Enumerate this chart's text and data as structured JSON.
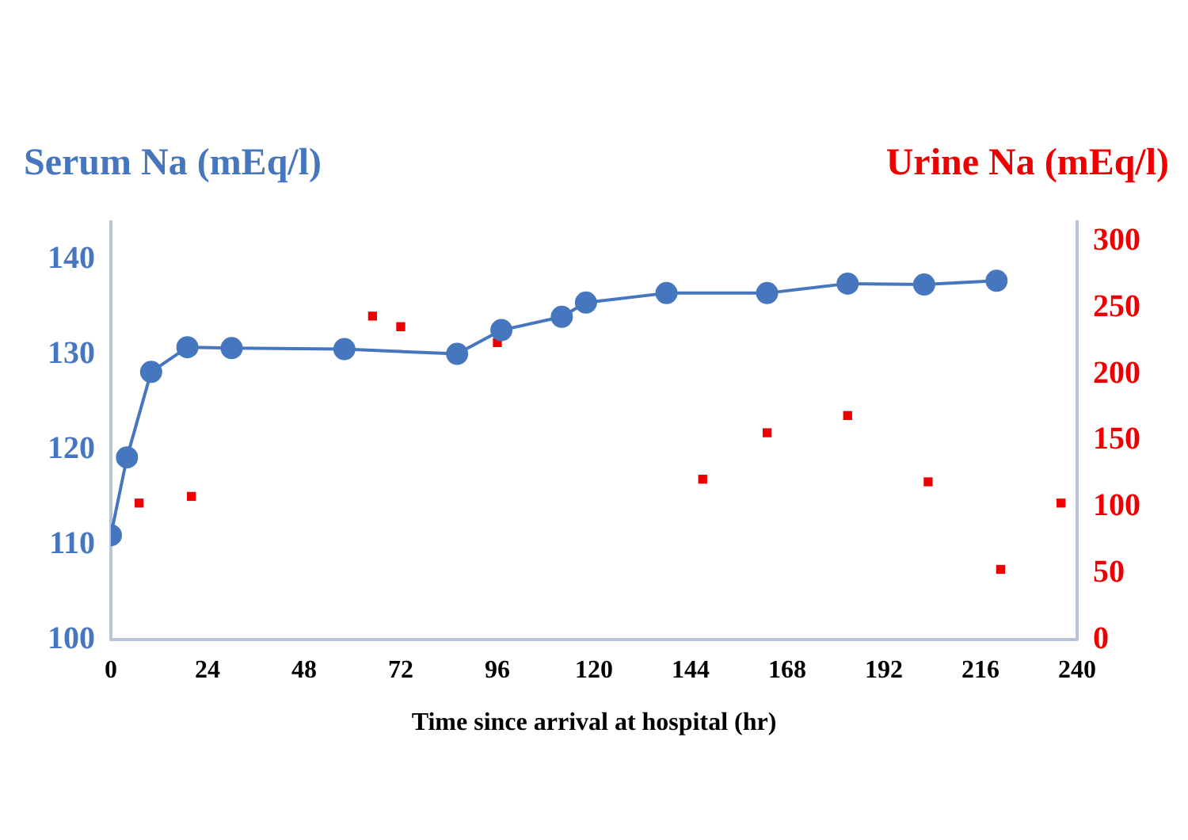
{
  "chart_data": {
    "type": "line",
    "xlabel": "Time since arrival at hospital (hr)",
    "ylabel": "Serum Na (mEq/l)",
    "y2label": "Urine Na (mEq/l)",
    "xlim": [
      0,
      240
    ],
    "xticks": [
      0,
      24,
      48,
      72,
      96,
      120,
      144,
      168,
      192,
      216,
      240
    ],
    "ylim": [
      100,
      144
    ],
    "yticks": [
      100,
      110,
      120,
      130,
      140
    ],
    "y2lim": [
      0,
      315
    ],
    "y2ticks": [
      0,
      50,
      100,
      150,
      200,
      250,
      300
    ],
    "grid": false,
    "legend": false,
    "series": [
      {
        "type": "line",
        "marker": "circle",
        "color": "#4677be",
        "x": [
          0,
          4,
          10,
          19,
          30,
          58,
          86,
          97,
          112,
          118,
          138,
          163,
          183,
          202,
          220
        ],
        "values": [
          111,
          119.2,
          128.2,
          130.8,
          130.7,
          130.6,
          130.1,
          132.6,
          134,
          135.5,
          136.5,
          136.5,
          137.5,
          137.4,
          137.8
        ]
      },
      {
        "type": "scatter",
        "marker": "square",
        "axis": "y2",
        "color": "#ee0000",
        "x": [
          7,
          20,
          65,
          72,
          96,
          147,
          163,
          183,
          203,
          221,
          236
        ],
        "values": [
          103,
          108,
          244,
          236,
          224,
          121,
          156,
          169,
          119,
          53,
          103
        ]
      }
    ]
  }
}
